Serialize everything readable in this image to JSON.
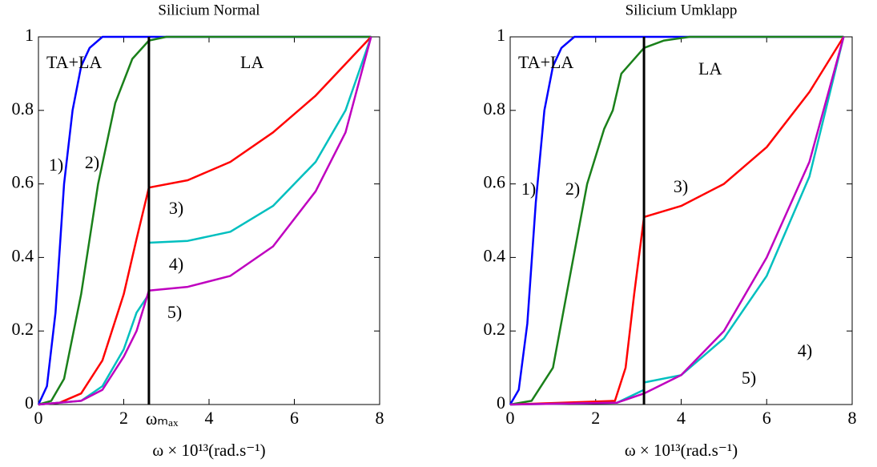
{
  "chart_data": [
    {
      "type": "line",
      "title": "Silicium Normal",
      "xlabel": "ω × 10¹³(rad.s⁻¹)",
      "xlim": [
        0,
        8
      ],
      "ylim": [
        0,
        1
      ],
      "xticks": [
        0,
        2,
        4,
        6,
        8
      ],
      "yticks": [
        0,
        0.2,
        0.4,
        0.6,
        0.8,
        1
      ],
      "vline": {
        "x": 2.59,
        "color": "#000000",
        "label": "ωₘₐₓ"
      },
      "annotations": [
        "TA+LA",
        "LA",
        "1)",
        "2)",
        "3)",
        "4)",
        "5)"
      ],
      "series": [
        {
          "color": "#0000ff",
          "x": [
            0,
            0.2,
            0.4,
            0.6,
            0.8,
            1.0,
            1.2,
            1.5,
            7.8
          ],
          "values": [
            0,
            0.05,
            0.25,
            0.6,
            0.8,
            0.92,
            0.97,
            1,
            1
          ]
        },
        {
          "color": "#1a801a",
          "x": [
            0,
            0.3,
            0.6,
            1.0,
            1.4,
            1.8,
            2.2,
            2.59,
            3.0,
            7.8
          ],
          "values": [
            0,
            0.01,
            0.07,
            0.3,
            0.6,
            0.82,
            0.94,
            0.99,
            1,
            1
          ]
        },
        {
          "color": "#ff0000",
          "x": [
            0,
            0.5,
            1.0,
            1.5,
            2.0,
            2.3,
            2.59,
            3.5,
            4.5,
            5.5,
            6.5,
            7.8
          ],
          "values": [
            0,
            0.005,
            0.03,
            0.12,
            0.3,
            0.45,
            0.59,
            0.61,
            0.66,
            0.74,
            0.84,
            1
          ]
        },
        {
          "color": "#00bfbf",
          "x": [
            0,
            1.0,
            1.5,
            2.0,
            2.3,
            2.59,
            2.59,
            3.5,
            4.5,
            5.5,
            6.5,
            7.2,
            7.8
          ],
          "values": [
            0,
            0.01,
            0.05,
            0.15,
            0.25,
            0.3,
            0.44,
            0.445,
            0.47,
            0.54,
            0.66,
            0.8,
            1
          ]
        },
        {
          "color": "#bf00bf",
          "x": [
            0,
            1.0,
            1.5,
            2.0,
            2.3,
            2.59,
            3.5,
            4.5,
            5.5,
            6.5,
            7.2,
            7.8
          ],
          "values": [
            0,
            0.01,
            0.04,
            0.13,
            0.2,
            0.31,
            0.32,
            0.35,
            0.43,
            0.58,
            0.74,
            1
          ]
        }
      ]
    },
    {
      "type": "line",
      "title": "Silicium Umklapp",
      "xlabel": "ω × 10¹³(rad.s⁻¹)",
      "xlim": [
        0,
        8
      ],
      "ylim": [
        0,
        1
      ],
      "xticks": [
        0,
        2,
        4,
        6,
        8
      ],
      "yticks": [
        0,
        0.2,
        0.4,
        0.6,
        0.8,
        1
      ],
      "vline": {
        "x": 3.13,
        "color": "#000000"
      },
      "annotations": [
        "TA+LA",
        "LA",
        "1)",
        "2)",
        "3)",
        "4)",
        "5)"
      ],
      "series": [
        {
          "color": "#0000ff",
          "x": [
            0,
            0.2,
            0.4,
            0.6,
            0.8,
            1.0,
            1.2,
            1.5,
            7.8
          ],
          "values": [
            0,
            0.04,
            0.22,
            0.55,
            0.8,
            0.92,
            0.97,
            1,
            1
          ]
        },
        {
          "color": "#1a801a",
          "x": [
            0,
            0.5,
            1.0,
            1.4,
            1.8,
            2.2,
            2.4,
            2.6,
            3.13,
            3.6,
            4.2,
            7.8
          ],
          "values": [
            0,
            0.01,
            0.1,
            0.35,
            0.6,
            0.75,
            0.8,
            0.9,
            0.97,
            0.99,
            1,
            1
          ]
        },
        {
          "color": "#ff0000",
          "x": [
            0,
            2.45,
            2.7,
            2.9,
            3.13,
            4.0,
            5.0,
            6.0,
            7.0,
            7.8
          ],
          "values": [
            0,
            0.01,
            0.1,
            0.3,
            0.51,
            0.54,
            0.6,
            0.7,
            0.85,
            1
          ]
        },
        {
          "color": "#00bfbf",
          "x": [
            0,
            2.5,
            3.13,
            3.13,
            4.0,
            5.0,
            6.0,
            7.0,
            7.8
          ],
          "values": [
            0,
            0.005,
            0.04,
            0.06,
            0.08,
            0.18,
            0.35,
            0.62,
            1
          ]
        },
        {
          "color": "#bf00bf",
          "x": [
            0,
            2.5,
            3.13,
            4.0,
            5.0,
            6.0,
            7.0,
            7.8
          ],
          "values": [
            0,
            0.005,
            0.03,
            0.08,
            0.2,
            0.4,
            0.66,
            1
          ]
        }
      ]
    }
  ]
}
